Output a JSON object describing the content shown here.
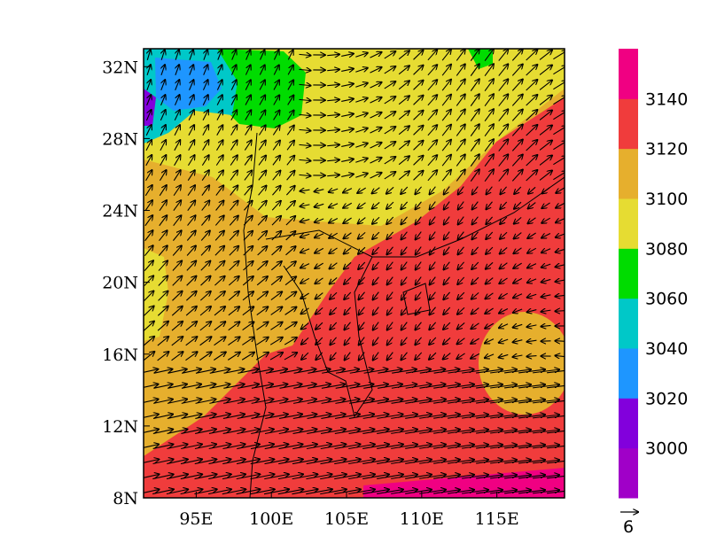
{
  "map": {
    "xlim": [
      91.5,
      119.5
    ],
    "ylim": [
      8,
      33
    ],
    "xticks": [
      {
        "value": 95,
        "label": "95E"
      },
      {
        "value": 100,
        "label": "100E"
      },
      {
        "value": 105,
        "label": "105E"
      },
      {
        "value": 110,
        "label": "110E"
      },
      {
        "value": 115,
        "label": "115E"
      }
    ],
    "yticks": [
      {
        "value": 8,
        "label": "8N"
      },
      {
        "value": 12,
        "label": "12N"
      },
      {
        "value": 16,
        "label": "16N"
      },
      {
        "value": 20,
        "label": "20N"
      },
      {
        "value": 24,
        "label": "24N"
      },
      {
        "value": 28,
        "label": "28N"
      },
      {
        "value": 32,
        "label": "32N"
      }
    ],
    "colorbar": {
      "levels": [
        3000,
        3020,
        3040,
        3060,
        3080,
        3100,
        3120,
        3140
      ],
      "colors": [
        "#a000c8",
        "#8200dc",
        "#1e96ff",
        "#00c8c8",
        "#00dc00",
        "#e6dc32",
        "#e6af2d",
        "#f03c3c",
        "#f00082"
      ]
    },
    "reference_vector": 6
  }
}
